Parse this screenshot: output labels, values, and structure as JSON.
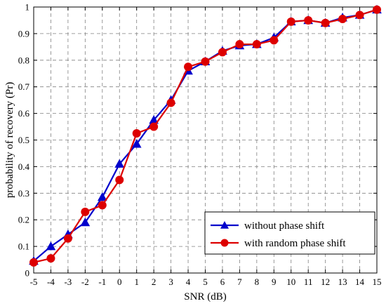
{
  "chart_data": {
    "type": "line",
    "xlabel": "SNR (dB)",
    "ylabel": "probability of recovery (Pr)",
    "xlim": [
      -5,
      15
    ],
    "ylim": [
      0,
      1
    ],
    "x": [
      -5,
      -4,
      -3,
      -2,
      -1,
      0,
      1,
      2,
      3,
      4,
      5,
      6,
      7,
      8,
      9,
      10,
      11,
      12,
      13,
      14,
      15
    ],
    "x_ticks": [
      "-5",
      "-4",
      "-3",
      "-2",
      "-1",
      "0",
      "1",
      "2",
      "3",
      "4",
      "5",
      "6",
      "7",
      "8",
      "9",
      "10",
      "11",
      "12",
      "13",
      "14",
      "15"
    ],
    "y_ticks": [
      "0",
      "0.1",
      "0.2",
      "0.3",
      "0.4",
      "0.5",
      "0.6",
      "0.7",
      "0.8",
      "0.9",
      "1"
    ],
    "grid": true,
    "legend_position": "bottom-right",
    "series": [
      {
        "name": "without phase shift",
        "color": "#0000cc",
        "marker": "triangle",
        "values": [
          0.045,
          0.1,
          0.145,
          0.19,
          0.285,
          0.41,
          0.485,
          0.575,
          0.65,
          0.76,
          0.795,
          0.835,
          0.855,
          0.86,
          0.885,
          0.945,
          0.95,
          0.94,
          0.96,
          0.97,
          0.99
        ]
      },
      {
        "name": "with random phase shift",
        "color": "#dd0000",
        "marker": "circle",
        "values": [
          0.04,
          0.055,
          0.13,
          0.23,
          0.255,
          0.35,
          0.525,
          0.55,
          0.64,
          0.775,
          0.795,
          0.83,
          0.86,
          0.86,
          0.875,
          0.945,
          0.95,
          0.94,
          0.955,
          0.97,
          0.99
        ]
      }
    ]
  }
}
